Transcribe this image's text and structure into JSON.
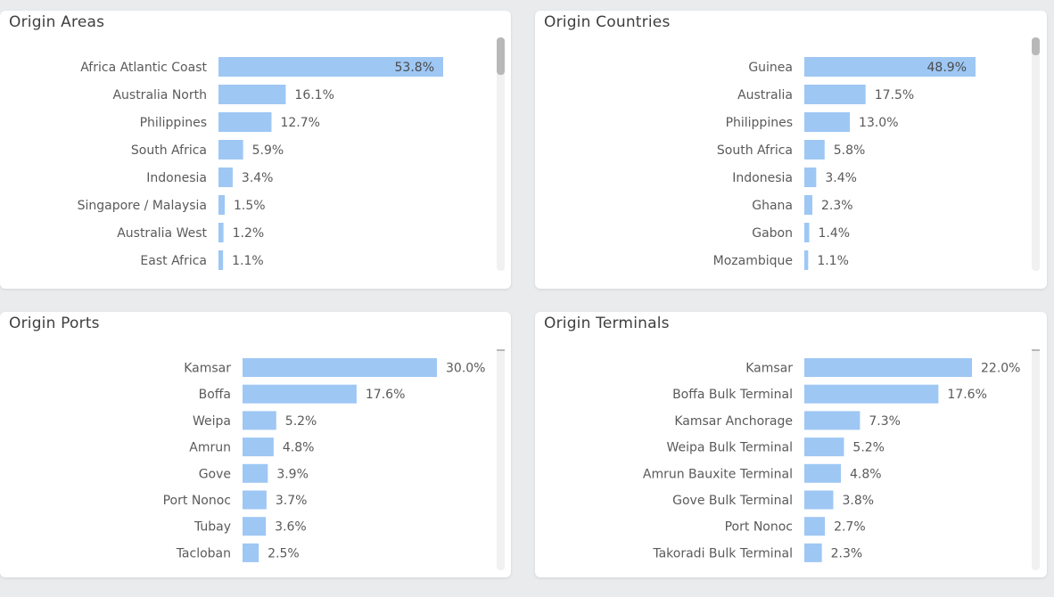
{
  "colors": {
    "bar": "#9ec7f4",
    "background": "#eaebed",
    "panel": "#ffffff",
    "text": "#5a5a5a"
  },
  "chart_data": [
    {
      "type": "bar",
      "orientation": "horizontal",
      "title": "Origin Areas",
      "categories": [
        "Africa Atlantic Coast",
        "Australia North",
        "Philippines",
        "South Africa",
        "Indonesia",
        "Singapore / Malaysia",
        "Australia West",
        "East Africa"
      ],
      "values": [
        53.8,
        16.1,
        12.7,
        5.9,
        3.4,
        1.5,
        1.2,
        1.1
      ],
      "value_labels": [
        "53.8%",
        "16.1%",
        "12.7%",
        "5.9%",
        "3.4%",
        "1.5%",
        "1.2%",
        "1.1%"
      ],
      "scrollbar": true
    },
    {
      "type": "bar",
      "orientation": "horizontal",
      "title": "Origin Countries",
      "categories": [
        "Guinea",
        "Australia",
        "Philippines",
        "South Africa",
        "Indonesia",
        "Ghana",
        "Gabon",
        "Mozambique"
      ],
      "values": [
        48.9,
        17.5,
        13.0,
        5.8,
        3.4,
        2.3,
        1.4,
        1.1
      ],
      "value_labels": [
        "48.9%",
        "17.5%",
        "13.0%",
        "5.8%",
        "3.4%",
        "2.3%",
        "1.4%",
        "1.1%"
      ],
      "scrollbar": true
    },
    {
      "type": "bar",
      "orientation": "horizontal",
      "title": "Origin Ports",
      "categories": [
        "Kamsar",
        "Boffa",
        "Weipa",
        "Amrun",
        "Gove",
        "Port Nonoc",
        "Tubay",
        "Tacloban"
      ],
      "values": [
        30.0,
        17.6,
        5.2,
        4.8,
        3.9,
        3.7,
        3.6,
        2.5
      ],
      "value_labels": [
        "30.0%",
        "17.6%",
        "5.2%",
        "4.8%",
        "3.9%",
        "3.7%",
        "3.6%",
        "2.5%"
      ],
      "scrollbar": false
    },
    {
      "type": "bar",
      "orientation": "horizontal",
      "title": "Origin Terminals",
      "categories": [
        "Kamsar",
        "Boffa Bulk Terminal",
        "Kamsar Anchorage",
        "Weipa Bulk Terminal",
        "Amrun Bauxite Terminal",
        "Gove Bulk Terminal",
        "Port Nonoc",
        "Takoradi Bulk Terminal"
      ],
      "values": [
        22.0,
        17.6,
        7.3,
        5.2,
        4.8,
        3.8,
        2.7,
        2.3
      ],
      "value_labels": [
        "22.0%",
        "17.6%",
        "7.3%",
        "5.2%",
        "4.8%",
        "3.8%",
        "2.7%",
        "2.3%"
      ],
      "scrollbar": false
    }
  ]
}
